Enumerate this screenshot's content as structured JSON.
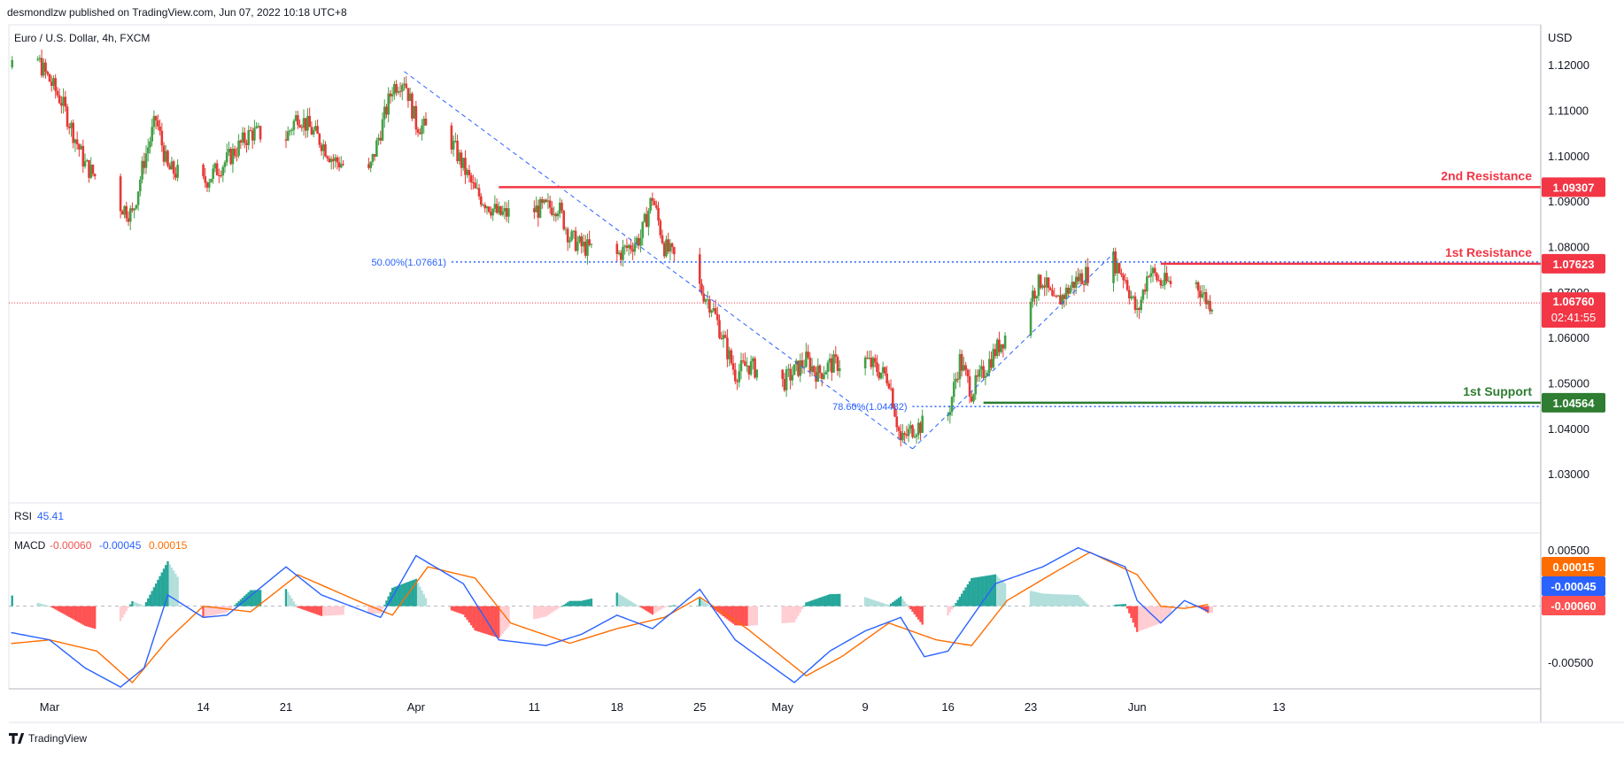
{
  "header": {
    "publish_line": "desmondlzw published on TradingView.com, Jun 07, 2022 10:18 UTC+8"
  },
  "footer": {
    "brand": "TradingView"
  },
  "colors": {
    "up": "#26a69a",
    "down": "#ef5350",
    "candle_up": "#43a047",
    "candle_down": "#e53935",
    "resistance": "#f23645",
    "support": "#2e7d32",
    "fib": "#2962ff",
    "macd": "#2962ff",
    "signal": "#ff6d00",
    "grid": "#e0e3eb",
    "text": "#131722"
  },
  "chart_data": [
    {
      "type": "candlestick",
      "title": "Euro / U.S. Dollar, 4h, FXCM",
      "currency": "USD",
      "ylim": [
        1.024,
        1.128
      ],
      "y_ticks": [
        "1.12000",
        "1.11000",
        "1.10000",
        "1.09000",
        "1.08000",
        "1.07000",
        "1.06000",
        "1.05000",
        "1.04000",
        "1.03000"
      ],
      "x_ticks": [
        {
          "label": "Mar",
          "date": "2022-03-01"
        },
        {
          "label": "14",
          "date": "2022-03-14"
        },
        {
          "label": "21",
          "date": "2022-03-21"
        },
        {
          "label": "Apr",
          "date": "2022-04-01"
        },
        {
          "label": "11",
          "date": "2022-04-11"
        },
        {
          "label": "18",
          "date": "2022-04-18"
        },
        {
          "label": "25",
          "date": "2022-04-25"
        },
        {
          "label": "May",
          "date": "2022-05-02"
        },
        {
          "label": "9",
          "date": "2022-05-09"
        },
        {
          "label": "16",
          "date": "2022-05-16"
        },
        {
          "label": "23",
          "date": "2022-05-23"
        },
        {
          "label": "Jun",
          "date": "2022-06-01"
        },
        {
          "label": "13",
          "date": "2022-06-13"
        }
      ],
      "close_path": [
        [
          "2022-02-24",
          1.117
        ],
        [
          "2022-02-28",
          1.121
        ],
        [
          "2022-03-02",
          1.112
        ],
        [
          "2022-03-04",
          1.098
        ],
        [
          "2022-03-07",
          1.089
        ],
        [
          "2022-03-08",
          1.087
        ],
        [
          "2022-03-09",
          1.099
        ],
        [
          "2022-03-10",
          1.108
        ],
        [
          "2022-03-11",
          1.097
        ],
        [
          "2022-03-14",
          1.094
        ],
        [
          "2022-03-16",
          1.099
        ],
        [
          "2022-03-18",
          1.105
        ],
        [
          "2022-03-21",
          1.104
        ],
        [
          "2022-03-22",
          1.109
        ],
        [
          "2022-03-24",
          1.103
        ],
        [
          "2022-03-25",
          1.099
        ],
        [
          "2022-03-28",
          1.096
        ],
        [
          "2022-03-30",
          1.115
        ],
        [
          "2022-03-31",
          1.117
        ],
        [
          "2022-04-01",
          1.107
        ],
        [
          "2022-04-04",
          1.103
        ],
        [
          "2022-04-06",
          1.092
        ],
        [
          "2022-04-08",
          1.087
        ],
        [
          "2022-04-11",
          1.088
        ],
        [
          "2022-04-13",
          1.089
        ],
        [
          "2022-04-14",
          1.082
        ],
        [
          "2022-04-15",
          1.08
        ],
        [
          "2022-04-18",
          1.078
        ],
        [
          "2022-04-20",
          1.082
        ],
        [
          "2022-04-21",
          1.091
        ],
        [
          "2022-04-22",
          1.08
        ],
        [
          "2022-04-25",
          1.071
        ],
        [
          "2022-04-26",
          1.067
        ],
        [
          "2022-04-28",
          1.052
        ],
        [
          "2022-04-29",
          1.054
        ],
        [
          "2022-05-02",
          1.05
        ],
        [
          "2022-05-04",
          1.055
        ],
        [
          "2022-05-05",
          1.052
        ],
        [
          "2022-05-06",
          1.054
        ],
        [
          "2022-05-09",
          1.055
        ],
        [
          "2022-05-11",
          1.051
        ],
        [
          "2022-05-12",
          1.037
        ],
        [
          "2022-05-13",
          1.04
        ],
        [
          "2022-05-16",
          1.043
        ],
        [
          "2022-05-17",
          1.055
        ],
        [
          "2022-05-18",
          1.048
        ],
        [
          "2022-05-20",
          1.057
        ],
        [
          "2022-05-23",
          1.069
        ],
        [
          "2022-05-24",
          1.073
        ],
        [
          "2022-05-25",
          1.067
        ],
        [
          "2022-05-27",
          1.073
        ],
        [
          "2022-05-30",
          1.077
        ],
        [
          "2022-05-31",
          1.073
        ],
        [
          "2022-06-01",
          1.065
        ],
        [
          "2022-06-02",
          1.075
        ],
        [
          "2022-06-03",
          1.072
        ],
        [
          "2022-06-06",
          1.072
        ],
        [
          "2022-06-07",
          1.0676
        ]
      ],
      "levels": [
        {
          "label": "2nd Resistance",
          "price": "1.09307",
          "value": 1.09307,
          "kind": "resistance"
        },
        {
          "label": "1st Resistance",
          "price": "1.07623",
          "value": 1.07623,
          "kind": "resistance"
        },
        {
          "label": "1st Support",
          "price": "1.04564",
          "value": 1.04564,
          "kind": "support"
        }
      ],
      "current_price": {
        "price": "1.06760",
        "value": 1.0676,
        "countdown": "02:41:55"
      },
      "fibonacci": [
        {
          "label": "50.00%(1.07661)",
          "value": 1.07661
        },
        {
          "label": "78.60%(1.04482)",
          "value": 1.04482
        }
      ],
      "trendlines": [
        {
          "from": [
            "2022-03-31",
            1.1185
          ],
          "to": [
            "2022-05-13",
            1.0355
          ]
        },
        {
          "from": [
            "2022-05-13",
            1.0355
          ],
          "to": [
            "2022-05-30",
            1.0785
          ]
        }
      ]
    },
    {
      "type": "indicator",
      "name": "RSI",
      "value": "45.41"
    },
    {
      "type": "macd",
      "name": "MACD",
      "values": {
        "histogram": "-0.00060",
        "macd": "-0.00045",
        "signal": "0.00015"
      },
      "histogram_value": -0.0006,
      "macd_value": -0.00045,
      "signal_value": 0.00015,
      "y_ticks": [
        "0.00500",
        "-0.00500"
      ],
      "ylim": [
        -0.0072,
        0.0062
      ],
      "macd_path": [
        [
          "2022-02-24",
          -0.002
        ],
        [
          "2022-03-01",
          -0.003
        ],
        [
          "2022-03-04",
          -0.0055
        ],
        [
          "2022-03-07",
          -0.0072
        ],
        [
          "2022-03-09",
          -0.0055
        ],
        [
          "2022-03-11",
          0.001
        ],
        [
          "2022-03-14",
          -0.001
        ],
        [
          "2022-03-16",
          -0.0008
        ],
        [
          "2022-03-21",
          0.0035
        ],
        [
          "2022-03-24",
          0.001
        ],
        [
          "2022-03-29",
          -0.001
        ],
        [
          "2022-04-01",
          0.0045
        ],
        [
          "2022-04-05",
          0.002
        ],
        [
          "2022-04-08",
          -0.003
        ],
        [
          "2022-04-12",
          -0.0035
        ],
        [
          "2022-04-15",
          -0.0025
        ],
        [
          "2022-04-18",
          -0.0008
        ],
        [
          "2022-04-21",
          -0.002
        ],
        [
          "2022-04-25",
          0.0015
        ],
        [
          "2022-04-28",
          -0.003
        ],
        [
          "2022-05-03",
          -0.0068
        ],
        [
          "2022-05-06",
          -0.004
        ],
        [
          "2022-05-09",
          -0.0022
        ],
        [
          "2022-05-12",
          -0.001
        ],
        [
          "2022-05-14",
          -0.0045
        ],
        [
          "2022-05-16",
          -0.004
        ],
        [
          "2022-05-20",
          0.002
        ],
        [
          "2022-05-24",
          0.0035
        ],
        [
          "2022-05-27",
          0.0052
        ],
        [
          "2022-05-31",
          0.0035
        ],
        [
          "2022-06-01",
          0.0005
        ],
        [
          "2022-06-03",
          -0.0015
        ],
        [
          "2022-06-05",
          0.0005
        ],
        [
          "2022-06-07",
          -0.00045
        ]
      ],
      "signal_path": [
        [
          "2022-02-24",
          -0.0035
        ],
        [
          "2022-03-01",
          -0.003
        ],
        [
          "2022-03-05",
          -0.004
        ],
        [
          "2022-03-08",
          -0.0068
        ],
        [
          "2022-03-11",
          -0.003
        ],
        [
          "2022-03-14",
          0.0
        ],
        [
          "2022-03-18",
          -0.0005
        ],
        [
          "2022-03-22",
          0.0028
        ],
        [
          "2022-03-27",
          0.0005
        ],
        [
          "2022-03-30",
          -0.0008
        ],
        [
          "2022-04-02",
          0.0035
        ],
        [
          "2022-04-06",
          0.0025
        ],
        [
          "2022-04-09",
          -0.0015
        ],
        [
          "2022-04-14",
          -0.0033
        ],
        [
          "2022-04-18",
          -0.002
        ],
        [
          "2022-04-22",
          -0.001
        ],
        [
          "2022-04-25",
          0.0008
        ],
        [
          "2022-04-29",
          -0.002
        ],
        [
          "2022-05-04",
          -0.0062
        ],
        [
          "2022-05-07",
          -0.0045
        ],
        [
          "2022-05-11",
          -0.0015
        ],
        [
          "2022-05-15",
          -0.003
        ],
        [
          "2022-05-18",
          -0.0035
        ],
        [
          "2022-05-21",
          0.0005
        ],
        [
          "2022-05-25",
          0.003
        ],
        [
          "2022-05-28",
          0.0048
        ],
        [
          "2022-06-01",
          0.0028
        ],
        [
          "2022-06-03",
          0.0
        ],
        [
          "2022-06-05",
          -0.0002
        ],
        [
          "2022-06-07",
          0.00015
        ]
      ]
    }
  ]
}
